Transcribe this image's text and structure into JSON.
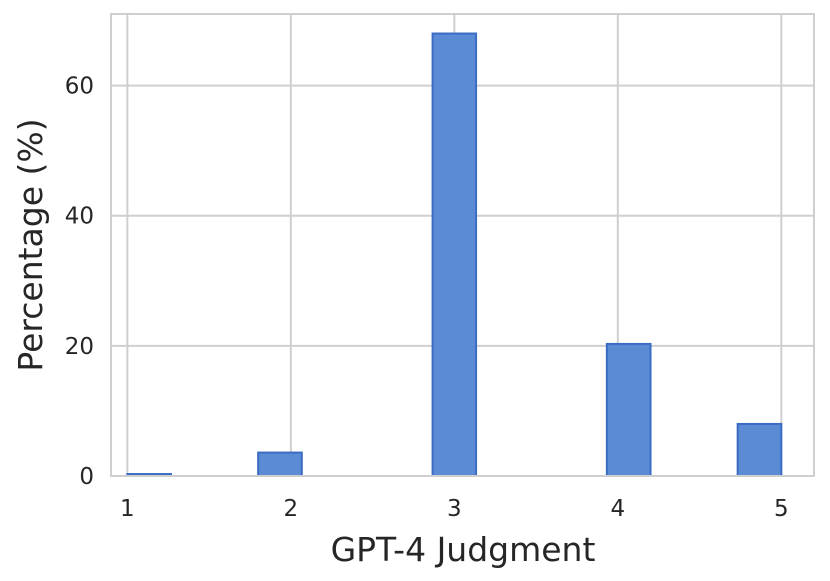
{
  "chart_data": {
    "type": "bar",
    "title": "",
    "xlabel": "GPT-4 Judgment",
    "ylabel": "Percentage (%)",
    "xlim": [
      0.9,
      5.2
    ],
    "ylim": [
      0,
      71
    ],
    "xticks": [
      1,
      2,
      3,
      4,
      5
    ],
    "yticks": [
      0,
      20,
      40,
      60
    ],
    "grid": true,
    "bar_fill": "#5b8bd4",
    "bar_edge": "#3b6cc4",
    "bars": [
      {
        "x_left": 1.0,
        "x_right": 1.267,
        "value": 0.3
      },
      {
        "x_left": 1.8,
        "x_right": 2.067,
        "value": 3.6
      },
      {
        "x_left": 2.867,
        "x_right": 3.133,
        "value": 68.0
      },
      {
        "x_left": 3.933,
        "x_right": 4.2,
        "value": 20.3
      },
      {
        "x_left": 4.733,
        "x_right": 5.0,
        "value": 8.0
      }
    ]
  }
}
